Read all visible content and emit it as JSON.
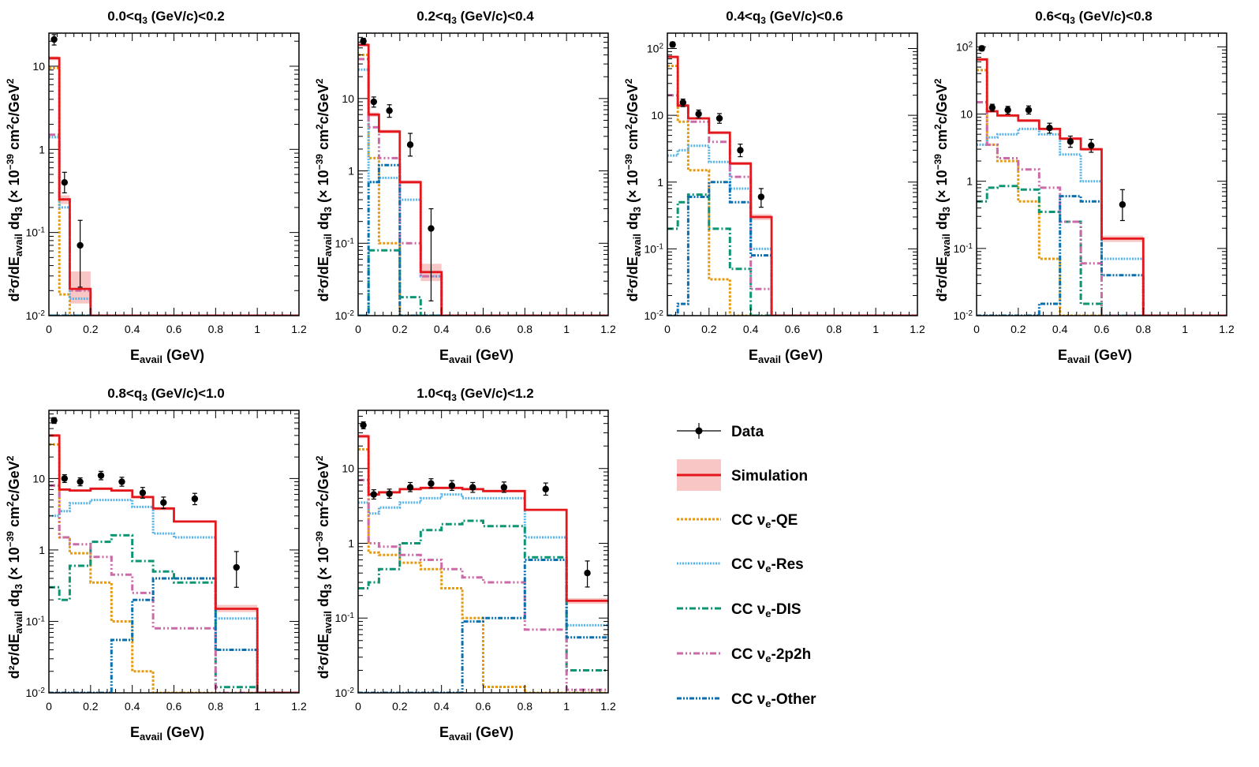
{
  "figure": {
    "x_label": "E",
    "x_label_sub": "avail",
    "x_label_unit": " (GeV)",
    "y_label": "d²σ/dE",
    "y_label_sub1": "avail",
    "y_label_mid": " dq",
    "y_label_sub2": "3",
    "y_label_unit_a": " (× 10",
    "y_label_exp": "−39",
    "y_label_unit_b": " cm",
    "y_label_unit_c": "c/GeV",
    "y_label_sq": "2"
  },
  "colors": {
    "data": "#000000",
    "simulation": "#e4181c",
    "band": "#f7b3b3",
    "qe": "#e69a0f",
    "res": "#56b4e9",
    "dis": "#0c9573",
    "twop2h": "#cc6aa7",
    "other": "#0a6fae"
  },
  "legend": {
    "items": [
      {
        "key": "data",
        "label": "Data"
      },
      {
        "key": "simulation",
        "label": "Simulation"
      },
      {
        "key": "qe",
        "prefix": "CC ν",
        "sub": "e",
        "suffix": "-QE"
      },
      {
        "key": "res",
        "prefix": "CC ν",
        "sub": "e",
        "suffix": "-Res"
      },
      {
        "key": "dis",
        "prefix": "CC ν",
        "sub": "e",
        "suffix": "-DIS"
      },
      {
        "key": "twop2h",
        "prefix": "CC ν",
        "sub": "e",
        "suffix": "-2p2h"
      },
      {
        "key": "other",
        "prefix": "CC ν",
        "sub": "e",
        "suffix": "-Other"
      }
    ]
  },
  "chart_data": [
    {
      "type": "line",
      "title_pre": "0.0<q",
      "title_sub": "3",
      "title_post": " (GeV/c)<0.2",
      "xlim": [
        0,
        1.2
      ],
      "ylim": [
        0.01,
        25
      ],
      "yscale": "log",
      "xticks": [
        "0",
        "0.2",
        "0.4",
        "0.6",
        "0.8",
        "1",
        "1.2"
      ],
      "yticks": [
        {
          "v": 0.01,
          "b": "10",
          "e": "-2"
        },
        {
          "v": 0.1,
          "b": "10",
          "e": "-1"
        },
        {
          "v": 1,
          "b": "1",
          "e": ""
        },
        {
          "v": 10,
          "b": "10",
          "e": ""
        }
      ],
      "bins": [
        0,
        0.05,
        0.1,
        0.2,
        1.2
      ],
      "simulation": [
        12.5,
        0.25,
        0.021,
        0.01
      ],
      "band": [
        [
          11.8,
          13.2
        ],
        [
          0.22,
          0.28
        ],
        [
          0.014,
          0.034
        ],
        [
          0.01,
          0.01
        ]
      ],
      "qe": [
        9.5,
        0.018,
        0.01,
        0.01
      ],
      "res": [
        1.4,
        0.2,
        0.016,
        0.01
      ],
      "dis": [
        0.01,
        0.01,
        0.01,
        0.01
      ],
      "twop2h": [
        1.5,
        0.25,
        0.02,
        0.01
      ],
      "other": [
        0.01,
        0.01,
        0.01,
        0.01
      ],
      "data": [
        {
          "x": 0.025,
          "y": 21,
          "lo": 18,
          "hi": 24
        },
        {
          "x": 0.075,
          "y": 0.4,
          "lo": 0.3,
          "hi": 0.53
        },
        {
          "x": 0.15,
          "y": 0.07,
          "lo": 0.022,
          "hi": 0.14
        }
      ]
    },
    {
      "type": "line",
      "title_pre": "0.2<q",
      "title_sub": "3",
      "title_post": " (GeV/c)<0.4",
      "xlim": [
        0,
        1.2
      ],
      "ylim": [
        0.01,
        80
      ],
      "yscale": "log",
      "xticks": [
        "0",
        "0.2",
        "0.4",
        "0.6",
        "0.8",
        "1",
        "1.2"
      ],
      "yticks": [
        {
          "v": 0.01,
          "b": "10",
          "e": "-2"
        },
        {
          "v": 0.1,
          "b": "10",
          "e": "-1"
        },
        {
          "v": 1,
          "b": "1",
          "e": ""
        },
        {
          "v": 10,
          "b": "10",
          "e": ""
        }
      ],
      "bins": [
        0,
        0.05,
        0.1,
        0.2,
        0.3,
        0.4,
        1.2
      ],
      "simulation": [
        55,
        6,
        3.5,
        0.7,
        0.04,
        0.01
      ],
      "band": [
        [
          52,
          58
        ],
        [
          5.6,
          6.4
        ],
        [
          3.3,
          3.7
        ],
        [
          0.66,
          0.74
        ],
        [
          0.03,
          0.052
        ],
        [
          0.01,
          0.01
        ]
      ],
      "qe": [
        40,
        1.5,
        0.1,
        0.01,
        0.01,
        0.01
      ],
      "res": [
        25,
        0.7,
        0.8,
        0.4,
        0.035,
        0.01
      ],
      "dis": [
        0.01,
        0.08,
        0.08,
        0.018,
        0.01,
        0.01
      ],
      "twop2h": [
        35,
        4,
        1.5,
        0.1,
        0.035,
        0.01
      ],
      "other": [
        0.01,
        0.7,
        1.2,
        0.01,
        0.01,
        0.01
      ],
      "data": [
        {
          "x": 0.025,
          "y": 62,
          "lo": 56,
          "hi": 68
        },
        {
          "x": 0.075,
          "y": 9,
          "lo": 7.6,
          "hi": 10.5
        },
        {
          "x": 0.15,
          "y": 6.8,
          "lo": 5.5,
          "hi": 8.2
        },
        {
          "x": 0.25,
          "y": 2.3,
          "lo": 1.6,
          "hi": 3.3
        },
        {
          "x": 0.35,
          "y": 0.16,
          "lo": 0.016,
          "hi": 0.3
        }
      ]
    },
    {
      "type": "line",
      "title_pre": "0.4<q",
      "title_sub": "3",
      "title_post": " (GeV/c)<0.6",
      "xlim": [
        0,
        1.2
      ],
      "ylim": [
        0.01,
        170
      ],
      "yscale": "log",
      "xticks": [
        "0",
        "0.2",
        "0.4",
        "0.6",
        "0.8",
        "1",
        "1.2"
      ],
      "yticks": [
        {
          "v": 0.01,
          "b": "10",
          "e": "-2"
        },
        {
          "v": 0.1,
          "b": "10",
          "e": "-1"
        },
        {
          "v": 1,
          "b": "1",
          "e": ""
        },
        {
          "v": 10,
          "b": "10",
          "e": ""
        },
        {
          "v": 100,
          "b": "10",
          "e": "2"
        }
      ],
      "bins": [
        0,
        0.05,
        0.1,
        0.2,
        0.3,
        0.4,
        0.5,
        1.2
      ],
      "simulation": [
        75,
        14,
        9,
        5.5,
        1.9,
        0.3,
        0.01
      ],
      "band": [
        [
          71,
          79
        ],
        [
          13.3,
          14.7
        ],
        [
          8.6,
          9.4
        ],
        [
          5.2,
          5.8
        ],
        [
          1.8,
          2.0
        ],
        [
          0.27,
          0.33
        ],
        [
          0.01,
          0.01
        ]
      ],
      "qe": [
        55,
        8,
        1.5,
        0.035,
        0.01,
        0.01,
        0.01
      ],
      "res": [
        2.5,
        3,
        3.5,
        2,
        0.8,
        0.1,
        0.01
      ],
      "dis": [
        0.2,
        0.5,
        0.65,
        0.2,
        0.05,
        0.01,
        0.01
      ],
      "twop2h": [
        20,
        14,
        8,
        4,
        1.2,
        0.025,
        0.01
      ],
      "other": [
        0.01,
        0.015,
        0.6,
        1,
        0.5,
        0.08,
        0.01
      ],
      "data": [
        {
          "x": 0.025,
          "y": 115,
          "lo": 105,
          "hi": 125
        },
        {
          "x": 0.075,
          "y": 15.5,
          "lo": 13.5,
          "hi": 17.5
        },
        {
          "x": 0.15,
          "y": 10.5,
          "lo": 9.2,
          "hi": 12
        },
        {
          "x": 0.25,
          "y": 9,
          "lo": 7.6,
          "hi": 10.6
        },
        {
          "x": 0.35,
          "y": 3,
          "lo": 2.4,
          "hi": 3.7
        },
        {
          "x": 0.45,
          "y": 0.6,
          "lo": 0.42,
          "hi": 0.8
        }
      ]
    },
    {
      "type": "line",
      "title_pre": "0.6<q",
      "title_sub": "3",
      "title_post": " (GeV/c)<0.8",
      "xlim": [
        0,
        1.2
      ],
      "ylim": [
        0.01,
        160
      ],
      "yscale": "log",
      "xticks": [
        "0",
        "0.2",
        "0.4",
        "0.6",
        "0.8",
        "1",
        "1.2"
      ],
      "yticks": [
        {
          "v": 0.01,
          "b": "10",
          "e": "-2"
        },
        {
          "v": 0.1,
          "b": "10",
          "e": "-1"
        },
        {
          "v": 1,
          "b": "1",
          "e": ""
        },
        {
          "v": 10,
          "b": "10",
          "e": ""
        },
        {
          "v": 100,
          "b": "10",
          "e": "2"
        }
      ],
      "bins": [
        0,
        0.05,
        0.1,
        0.2,
        0.3,
        0.4,
        0.5,
        0.6,
        0.8,
        1.2
      ],
      "simulation": [
        65,
        11,
        9.5,
        8,
        6,
        4.3,
        3,
        0.14,
        0.01
      ],
      "band": [
        [
          62,
          68
        ],
        [
          10.5,
          11.5
        ],
        [
          9,
          10
        ],
        [
          7.6,
          8.4
        ],
        [
          5.7,
          6.3
        ],
        [
          4.1,
          4.5
        ],
        [
          2.85,
          3.15
        ],
        [
          0.125,
          0.155
        ],
        [
          0.01,
          0.01
        ]
      ],
      "qe": [
        45,
        3.5,
        2,
        0.5,
        0.07,
        0.01,
        0.01,
        0.01,
        0.01
      ],
      "res": [
        3.5,
        4.5,
        5,
        6,
        5,
        2.5,
        1,
        0.07,
        0.01
      ],
      "dis": [
        0.5,
        0.8,
        0.85,
        0.75,
        0.35,
        0.25,
        0.015,
        0.01,
        0.01
      ],
      "twop2h": [
        15,
        3.5,
        2.2,
        1.5,
        0.8,
        0.25,
        0.06,
        0.01,
        0.01
      ],
      "other": [
        0.01,
        0.01,
        0.01,
        0.01,
        0.015,
        0.6,
        0.5,
        0.04,
        0.01
      ],
      "data": [
        {
          "x": 0.025,
          "y": 95,
          "lo": 87,
          "hi": 103
        },
        {
          "x": 0.075,
          "y": 12.5,
          "lo": 11,
          "hi": 14
        },
        {
          "x": 0.15,
          "y": 11.5,
          "lo": 10,
          "hi": 13
        },
        {
          "x": 0.25,
          "y": 11.5,
          "lo": 10,
          "hi": 13.2
        },
        {
          "x": 0.35,
          "y": 6.2,
          "lo": 5.2,
          "hi": 7.3
        },
        {
          "x": 0.45,
          "y": 3.9,
          "lo": 3.2,
          "hi": 4.7
        },
        {
          "x": 0.55,
          "y": 3.4,
          "lo": 2.7,
          "hi": 4.2
        },
        {
          "x": 0.7,
          "y": 0.45,
          "lo": 0.26,
          "hi": 0.75
        }
      ]
    },
    {
      "type": "line",
      "title_pre": "0.8<q",
      "title_sub": "3",
      "title_post": " (GeV/c)<1.0",
      "xlim": [
        0,
        1.2
      ],
      "ylim": [
        0.01,
        90
      ],
      "yscale": "log",
      "xticks": [
        "0",
        "0.2",
        "0.4",
        "0.6",
        "0.8",
        "1",
        "1.2"
      ],
      "yticks": [
        {
          "v": 0.01,
          "b": "10",
          "e": "-2"
        },
        {
          "v": 0.1,
          "b": "10",
          "e": "-1"
        },
        {
          "v": 1,
          "b": "1",
          "e": ""
        },
        {
          "v": 10,
          "b": "10",
          "e": ""
        }
      ],
      "bins": [
        0,
        0.05,
        0.1,
        0.2,
        0.3,
        0.4,
        0.5,
        0.6,
        0.8,
        1.0,
        1.2
      ],
      "simulation": [
        40,
        7,
        6.8,
        7.2,
        6.8,
        5.5,
        3.8,
        2.5,
        0.15,
        0.01
      ],
      "band": [
        [
          38,
          42
        ],
        [
          6.7,
          7.3
        ],
        [
          6.5,
          7.1
        ],
        [
          6.9,
          7.5
        ],
        [
          6.5,
          7.1
        ],
        [
          5.25,
          5.75
        ],
        [
          3.6,
          4.0
        ],
        [
          2.4,
          2.6
        ],
        [
          0.135,
          0.17
        ],
        [
          0.01,
          0.01
        ]
      ],
      "qe": [
        30,
        1.5,
        0.9,
        0.35,
        0.1,
        0.02,
        0.01,
        0.01,
        0.01,
        0.01
      ],
      "res": [
        3,
        3.5,
        4.5,
        5,
        5,
        4,
        1.7,
        1.5,
        0.11,
        0.01
      ],
      "dis": [
        0.3,
        0.2,
        0.6,
        1.3,
        1.6,
        0.7,
        0.5,
        0.35,
        0.012,
        0.01
      ],
      "twop2h": [
        8,
        1.5,
        1.2,
        0.8,
        0.45,
        0.25,
        0.08,
        0.08,
        0.01,
        0.01
      ],
      "other": [
        0.01,
        0.01,
        0.01,
        0.01,
        0.055,
        0.2,
        0.4,
        0.4,
        0.04,
        0.01
      ],
      "data": [
        {
          "x": 0.025,
          "y": 65,
          "lo": 59,
          "hi": 71
        },
        {
          "x": 0.075,
          "y": 10,
          "lo": 8.8,
          "hi": 11.3
        },
        {
          "x": 0.15,
          "y": 9,
          "lo": 7.9,
          "hi": 10.2
        },
        {
          "x": 0.25,
          "y": 11,
          "lo": 9.6,
          "hi": 12.6
        },
        {
          "x": 0.35,
          "y": 9,
          "lo": 7.8,
          "hi": 10.4
        },
        {
          "x": 0.45,
          "y": 6.3,
          "lo": 5.3,
          "hi": 7.5
        },
        {
          "x": 0.55,
          "y": 4.6,
          "lo": 3.8,
          "hi": 5.5
        },
        {
          "x": 0.7,
          "y": 5.2,
          "lo": 4.3,
          "hi": 6.2
        },
        {
          "x": 0.9,
          "y": 0.57,
          "lo": 0.3,
          "hi": 0.95
        }
      ]
    },
    {
      "type": "line",
      "title_pre": "1.0<q",
      "title_sub": "3",
      "title_post": " (GeV/c)<1.2",
      "xlim": [
        0,
        1.2
      ],
      "ylim": [
        0.01,
        60
      ],
      "yscale": "log",
      "xticks": [
        "0",
        "0.2",
        "0.4",
        "0.6",
        "0.8",
        "1",
        "1.2"
      ],
      "yticks": [
        {
          "v": 0.01,
          "b": "10",
          "e": "-2"
        },
        {
          "v": 0.1,
          "b": "10",
          "e": "-1"
        },
        {
          "v": 1,
          "b": "1",
          "e": ""
        },
        {
          "v": 10,
          "b": "10",
          "e": ""
        }
      ],
      "bins": [
        0,
        0.05,
        0.1,
        0.2,
        0.3,
        0.4,
        0.5,
        0.6,
        0.8,
        1.0,
        1.2
      ],
      "simulation": [
        27,
        4.5,
        4.8,
        5.3,
        5.5,
        5.5,
        5.3,
        5,
        2.8,
        0.17
      ],
      "band": [
        [
          25.5,
          28.5
        ],
        [
          4.3,
          4.7
        ],
        [
          4.6,
          5.0
        ],
        [
          5.1,
          5.5
        ],
        [
          5.3,
          5.7
        ],
        [
          5.3,
          5.7
        ],
        [
          5.1,
          5.5
        ],
        [
          4.8,
          5.2
        ],
        [
          2.7,
          2.9
        ],
        [
          0.155,
          0.185
        ]
      ],
      "qe": [
        18,
        0.75,
        0.7,
        0.55,
        0.45,
        0.25,
        0.1,
        0.012,
        0.01,
        0.01
      ],
      "res": [
        3.5,
        2.5,
        3,
        3.5,
        4,
        4.5,
        4,
        4,
        1.2,
        0.08
      ],
      "dis": [
        0.25,
        0.3,
        0.45,
        1,
        1.5,
        1.8,
        2,
        1.7,
        0.65,
        0.02
      ],
      "twop2h": [
        7,
        1,
        0.9,
        0.7,
        0.6,
        0.45,
        0.35,
        0.3,
        0.07,
        0.011
      ],
      "other": [
        0.01,
        0.01,
        0.01,
        0.01,
        0.01,
        0.01,
        0.09,
        0.1,
        0.6,
        0.055
      ],
      "data": [
        {
          "x": 0.025,
          "y": 38,
          "lo": 34,
          "hi": 42
        },
        {
          "x": 0.075,
          "y": 4.5,
          "lo": 3.9,
          "hi": 5.2
        },
        {
          "x": 0.15,
          "y": 4.6,
          "lo": 4,
          "hi": 5.3
        },
        {
          "x": 0.25,
          "y": 5.6,
          "lo": 4.9,
          "hi": 6.5
        },
        {
          "x": 0.35,
          "y": 6.3,
          "lo": 5.5,
          "hi": 7.3
        },
        {
          "x": 0.45,
          "y": 5.9,
          "lo": 5.1,
          "hi": 6.9
        },
        {
          "x": 0.55,
          "y": 5.6,
          "lo": 4.8,
          "hi": 6.5
        },
        {
          "x": 0.7,
          "y": 5.6,
          "lo": 4.8,
          "hi": 6.6
        },
        {
          "x": 0.9,
          "y": 5.3,
          "lo": 4.4,
          "hi": 6.4
        },
        {
          "x": 1.1,
          "y": 0.4,
          "lo": 0.26,
          "hi": 0.58
        }
      ]
    }
  ]
}
